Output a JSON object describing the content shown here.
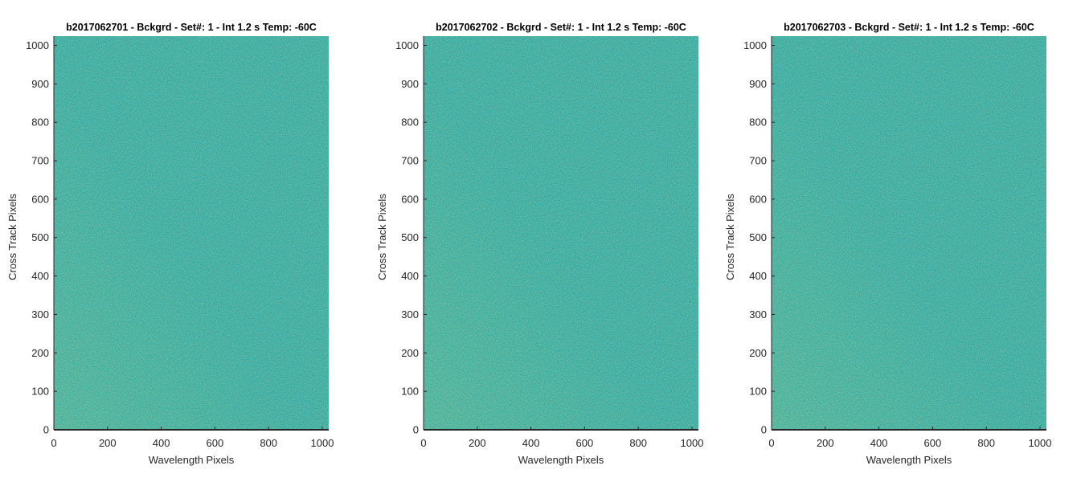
{
  "chart_data": [
    {
      "type": "heatmap",
      "title": "b2017062701 - Bckgrd - Set#: 1 - Int 1.2 s Temp: -60C",
      "xlabel": "Wavelength Pixels",
      "ylabel": "Cross Track Pixels",
      "xlim": [
        0,
        1024
      ],
      "ylim": [
        0,
        1024
      ],
      "xticks": [
        0,
        200,
        400,
        600,
        800,
        1000
      ],
      "yticks": [
        0,
        100,
        200,
        300,
        400,
        500,
        600,
        700,
        800,
        900,
        1000
      ],
      "colormap": [
        "#26a8a3",
        "#4ab695",
        "#8ec87b"
      ],
      "grid": false,
      "description": "Uniform background noise; slightly brighter toward the left and bottom edges"
    },
    {
      "type": "heatmap",
      "title": "b2017062702 - Bckgrd - Set#: 1 - Int 1.2 s Temp: -60C",
      "xlabel": "Wavelength Pixels",
      "ylabel": "Cross Track Pixels",
      "xlim": [
        0,
        1024
      ],
      "ylim": [
        0,
        1024
      ],
      "xticks": [
        0,
        200,
        400,
        600,
        800,
        1000
      ],
      "yticks": [
        0,
        100,
        200,
        300,
        400,
        500,
        600,
        700,
        800,
        900,
        1000
      ],
      "colormap": [
        "#26a8a3",
        "#4ab695",
        "#8ec87b"
      ],
      "grid": false,
      "description": "Uniform background noise; slightly brighter toward the left and bottom edges"
    },
    {
      "type": "heatmap",
      "title": "b2017062703 - Bckgrd - Set#: 1 - Int 1.2 s Temp: -60C",
      "xlabel": "Wavelength Pixels",
      "ylabel": "Cross Track Pixels",
      "xlim": [
        0,
        1024
      ],
      "ylim": [
        0,
        1024
      ],
      "xticks": [
        0,
        200,
        400,
        600,
        800,
        1000
      ],
      "yticks": [
        0,
        100,
        200,
        300,
        400,
        500,
        600,
        700,
        800,
        900,
        1000
      ],
      "colormap": [
        "#26a8a3",
        "#4ab695",
        "#8ec87b"
      ],
      "grid": false,
      "description": "Uniform background noise; slightly brighter toward the left and bottom edges"
    }
  ]
}
